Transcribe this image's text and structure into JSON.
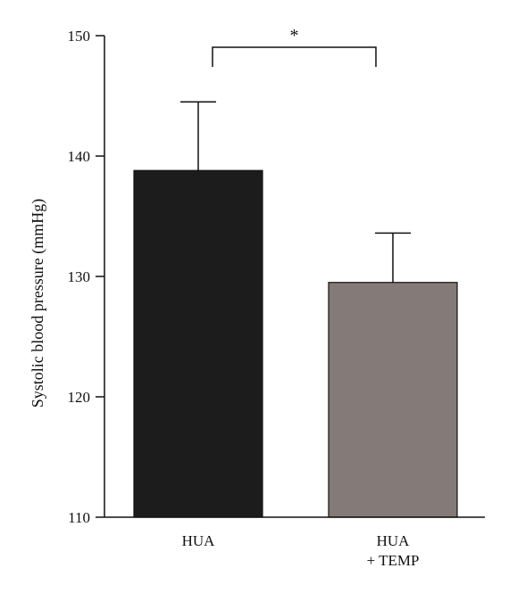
{
  "chart_data": {
    "type": "bar",
    "categories": [
      [
        "HUA"
      ],
      [
        "HUA",
        "+ TEMP"
      ]
    ],
    "values": [
      138.8,
      129.5
    ],
    "error_upper": [
      144.5,
      133.6
    ],
    "bar_colors": [
      "#1c1c1c",
      "#847b78"
    ],
    "ylabel": "Systolic blood pressure (mmHg)",
    "ylim": [
      110,
      150
    ],
    "yticks": [
      110,
      120,
      130,
      140,
      150
    ],
    "grid": false,
    "annotation": {
      "type": "significance-bracket",
      "between": [
        0,
        1
      ],
      "label": "*"
    }
  }
}
